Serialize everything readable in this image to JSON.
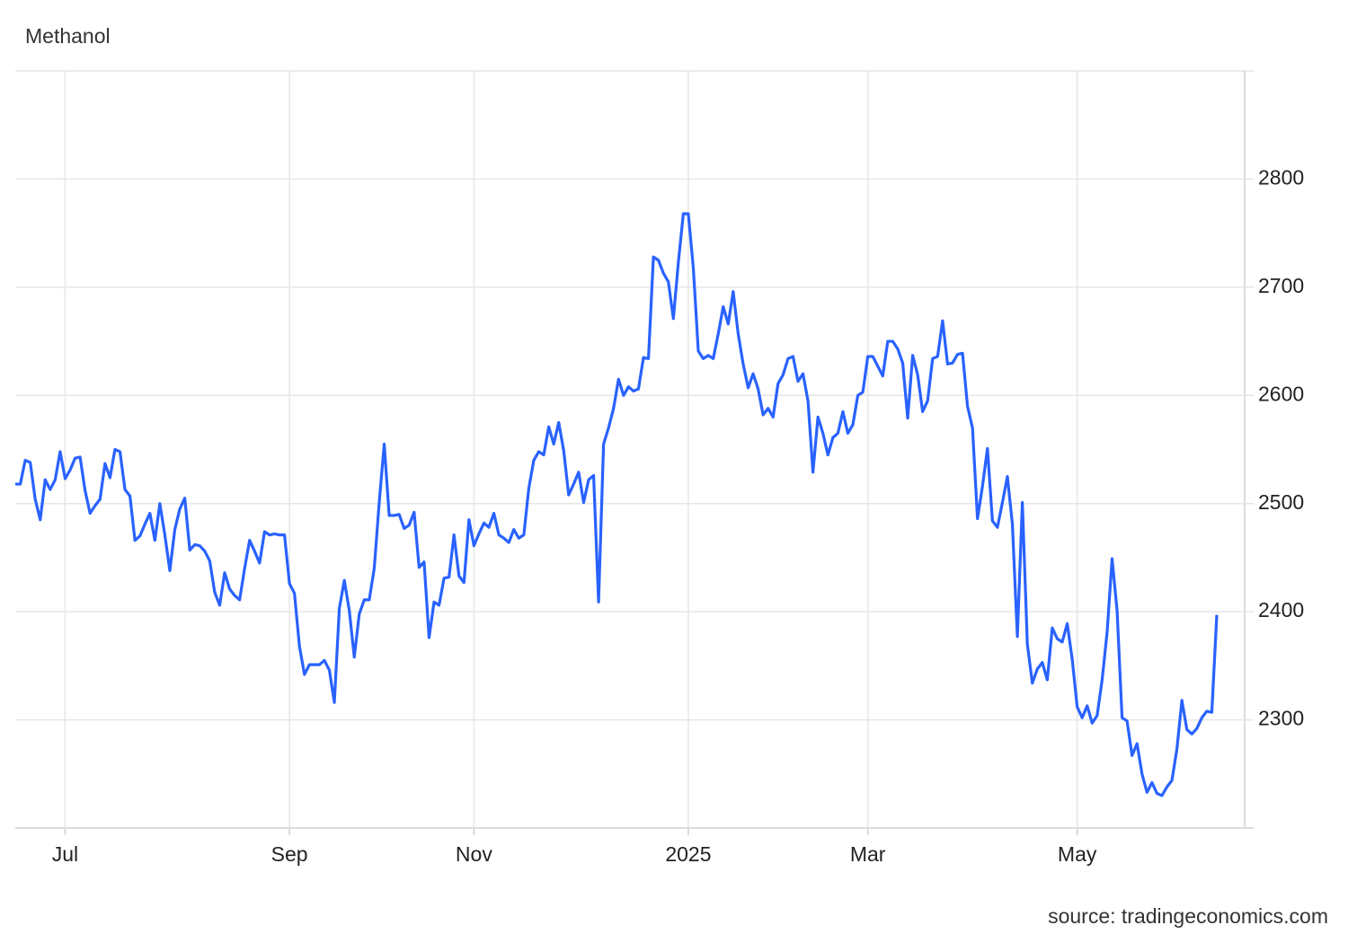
{
  "chart_data": {
    "type": "line",
    "title": "Methanol",
    "source": "source: tradingeconomics.com",
    "categories": [
      null,
      null,
      null,
      null,
      null,
      null,
      null,
      null,
      null,
      null,
      "Jul",
      null,
      null,
      null,
      null,
      null,
      null,
      null,
      null,
      null,
      null,
      null,
      null,
      null,
      null,
      null,
      null,
      null,
      null,
      null,
      null,
      null,
      null,
      null,
      null,
      null,
      null,
      null,
      null,
      null,
      null,
      null,
      null,
      null,
      null,
      null,
      null,
      null,
      null,
      null,
      null,
      null,
      null,
      null,
      null,
      "Sep",
      null,
      null,
      null,
      null,
      null,
      null,
      null,
      null,
      null,
      null,
      null,
      null,
      null,
      null,
      null,
      null,
      null,
      null,
      null,
      null,
      null,
      null,
      null,
      null,
      null,
      null,
      null,
      null,
      null,
      null,
      null,
      null,
      null,
      null,
      null,
      null,
      "Nov",
      null,
      null,
      null,
      null,
      null,
      null,
      null,
      null,
      null,
      null,
      null,
      null,
      null,
      null,
      null,
      null,
      null,
      null,
      null,
      null,
      null,
      null,
      null,
      null,
      null,
      null,
      null,
      null,
      null,
      null,
      null,
      null,
      null,
      null,
      null,
      null,
      null,
      null,
      null,
      null,
      null,
      null,
      "2025",
      null,
      null,
      null,
      null,
      null,
      null,
      null,
      null,
      null,
      null,
      null,
      null,
      null,
      null,
      null,
      null,
      null,
      null,
      null,
      null,
      null,
      null,
      null,
      null,
      null,
      null,
      null,
      null,
      null,
      null,
      null,
      null,
      null,
      null,
      null,
      "Mar",
      null,
      null,
      null,
      null,
      null,
      null,
      null,
      null,
      null,
      null,
      null,
      null,
      null,
      null,
      null,
      null,
      null,
      null,
      null,
      null,
      null,
      null,
      null,
      null,
      null,
      null,
      null,
      null,
      null,
      null,
      null,
      null,
      null,
      null,
      null,
      null,
      null,
      null,
      null,
      null,
      null,
      "May",
      null,
      null,
      null,
      null,
      null,
      null,
      null,
      null,
      null,
      null,
      null,
      null,
      null,
      null,
      null,
      null,
      null,
      null,
      null,
      null,
      null,
      null,
      null,
      null,
      null,
      null,
      null,
      null
    ],
    "series": [
      {
        "name": "Methanol",
        "color": "#2962ff",
        "values": [
          2518,
          2518,
          2540,
          2538,
          2504,
          2485,
          2522,
          2513,
          2522,
          2548,
          2523,
          2531,
          2542,
          2543,
          2512,
          2491,
          2498,
          2504,
          2537,
          2524,
          2550,
          2548,
          2513,
          2507,
          2466,
          2470,
          2481,
          2491,
          2466,
          2500,
          2471,
          2438,
          2476,
          2495,
          2505,
          2457,
          2462,
          2461,
          2456,
          2447,
          2418,
          2406,
          2436,
          2421,
          2415,
          2411,
          2440,
          2466,
          2456,
          2445,
          2474,
          2471,
          2472,
          2471,
          2471,
          2426,
          2417,
          2368,
          2342,
          2351,
          2351,
          2351,
          2355,
          2346,
          2316,
          2403,
          2429,
          2401,
          2358,
          2398,
          2411,
          2411,
          2440,
          2501,
          2555,
          2489,
          2489,
          2490,
          2477,
          2480,
          2492,
          2441,
          2446,
          2376,
          2409,
          2406,
          2431,
          2432,
          2471,
          2433,
          2427,
          2485,
          2461,
          2472,
          2482,
          2478,
          2491,
          2471,
          2468,
          2464,
          2476,
          2468,
          2471,
          2514,
          2540,
          2548,
          2545,
          2571,
          2555,
          2575,
          2549,
          2508,
          2518,
          2529,
          2501,
          2522,
          2526,
          2409,
          2555,
          2570,
          2588,
          2615,
          2600,
          2608,
          2604,
          2606,
          2635,
          2634,
          2728,
          2725,
          2713,
          2705,
          2671,
          2723,
          2768,
          2768,
          2718,
          2641,
          2634,
          2637,
          2634,
          2657,
          2682,
          2666,
          2696,
          2657,
          2629,
          2607,
          2620,
          2606,
          2582,
          2588,
          2580,
          2611,
          2619,
          2634,
          2636,
          2613,
          2620,
          2595,
          2529,
          2580,
          2565,
          2545,
          2561,
          2565,
          2585,
          2565,
          2573,
          2600,
          2603,
          2636,
          2636,
          2627,
          2618,
          2650,
          2650,
          2643,
          2630,
          2579,
          2637,
          2619,
          2585,
          2595,
          2634,
          2636,
          2669,
          2629,
          2630,
          2638,
          2639,
          2590,
          2570,
          2486,
          2516,
          2551,
          2484,
          2478,
          2501,
          2525,
          2481,
          2377,
          2501,
          2370,
          2334,
          2347,
          2353,
          2337,
          2385,
          2375,
          2372,
          2389,
          2356,
          2312,
          2302,
          2313,
          2297,
          2304,
          2337,
          2381,
          2449,
          2401,
          2302,
          2299,
          2267,
          2278,
          2250,
          2233,
          2242,
          2232,
          2230,
          2238,
          2244,
          2273,
          2318,
          2291,
          2287,
          2292,
          2302,
          2308,
          2307,
          2397
        ]
      }
    ],
    "ylim": [
      2200,
      2900
    ],
    "yticks": [
      2300,
      2400,
      2500,
      2600,
      2700,
      2800
    ],
    "grid": true,
    "yaxis_side": "right"
  }
}
